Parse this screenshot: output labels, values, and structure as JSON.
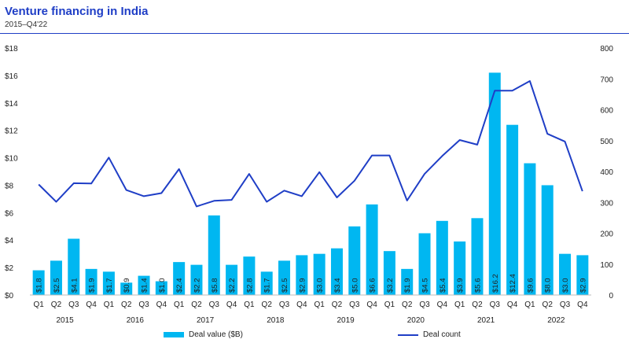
{
  "header": {
    "title": "Venture financing in India",
    "subtitle": "2015–Q4'22"
  },
  "colors": {
    "bar": "#00b7f1",
    "line": "#1f3ec6",
    "title": "#1f3ec6"
  },
  "chart_data": {
    "type": "bar",
    "title": "Venture financing in India",
    "subtitle": "2015–Q4'22",
    "quarters": [
      "Q1",
      "Q2",
      "Q3",
      "Q4",
      "Q1",
      "Q2",
      "Q3",
      "Q4",
      "Q1",
      "Q2",
      "Q3",
      "Q4",
      "Q1",
      "Q2",
      "Q3",
      "Q4",
      "Q1",
      "Q2",
      "Q3",
      "Q4",
      "Q1",
      "Q2",
      "Q3",
      "Q4",
      "Q1",
      "Q2",
      "Q3",
      "Q4",
      "Q1",
      "Q2",
      "Q3",
      "Q4"
    ],
    "years": [
      "2015",
      "2016",
      "2017",
      "2018",
      "2019",
      "2020",
      "2021",
      "2022"
    ],
    "series": [
      {
        "name": "Deal value ($B)",
        "type": "bar",
        "axis": "left",
        "values": [
          1.8,
          2.5,
          4.1,
          1.9,
          1.7,
          0.9,
          1.4,
          1.0,
          2.4,
          2.2,
          5.8,
          2.2,
          2.8,
          1.7,
          2.5,
          2.9,
          3.0,
          3.4,
          5.0,
          6.6,
          3.2,
          1.9,
          4.5,
          5.4,
          3.9,
          5.6,
          16.2,
          12.4,
          9.6,
          8.0,
          3.0,
          2.9
        ],
        "labels": [
          "$1.8",
          "$2.5",
          "$4.1",
          "$1.9",
          "$1.7",
          "$0.9",
          "$1.4",
          "$1.0",
          "$2.4",
          "$2.2",
          "$5.8",
          "$2.2",
          "$2.8",
          "$1.7",
          "$2.5",
          "$2.9",
          "$3.0",
          "$3.4",
          "$5.0",
          "$6.6",
          "$3.2",
          "$1.9",
          "$4.5",
          "$5.4",
          "$3.9",
          "$5.6",
          "$16.2",
          "$12.4",
          "$9.6",
          "$8.0",
          "$3.0",
          "$2.9"
        ]
      },
      {
        "name": "Deal count",
        "type": "line",
        "axis": "right",
        "values": [
          358,
          302,
          362,
          361,
          445,
          340,
          320,
          330,
          408,
          287,
          305,
          308,
          392,
          302,
          338,
          320,
          398,
          316,
          370,
          452,
          452,
          306,
          392,
          450,
          502,
          487,
          662,
          662,
          693,
          522,
          497,
          336
        ]
      }
    ],
    "y_left": {
      "min": 0,
      "max": 18,
      "step": 2,
      "ticks": [
        "$0",
        "$2",
        "$4",
        "$6",
        "$8",
        "$10",
        "$12",
        "$14",
        "$16",
        "$18"
      ]
    },
    "y_right": {
      "min": 0,
      "max": 800,
      "step": 100,
      "ticks": [
        "0",
        "100",
        "200",
        "300",
        "400",
        "500",
        "600",
        "700",
        "800"
      ]
    },
    "grid": false,
    "legend_position": "bottom"
  }
}
